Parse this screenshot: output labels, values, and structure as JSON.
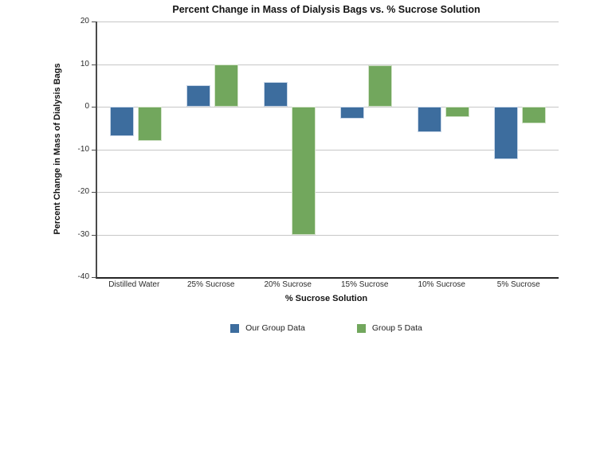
{
  "chart_data": {
    "type": "bar",
    "title": "Percent Change in Mass of Dialysis Bags vs. % Sucrose Solution",
    "xlabel": "% Sucrose Solution",
    "ylabel": "Percent Change in Mass of Dialysis Bags",
    "categories": [
      "Distilled Water",
      "25% Sucrose",
      "20% Sucrose",
      "15% Sucrose",
      "10% Sucrose",
      "5% Sucrose"
    ],
    "series": [
      {
        "name": "Our Group Data",
        "color": "#3D6D9E",
        "values": [
          -7,
          5,
          5.8,
          -2.8,
          -6,
          -12.4
        ]
      },
      {
        "name": "Group 5 Data",
        "color": "#72A75D",
        "values": [
          -8,
          10,
          -30,
          9.7,
          -2.4,
          -4
        ]
      }
    ],
    "ylim": [
      -40,
      20
    ],
    "y_ticks": [
      20,
      10,
      0,
      -10,
      -20,
      -30,
      -40
    ],
    "grid": true,
    "legend_position": "bottom"
  }
}
